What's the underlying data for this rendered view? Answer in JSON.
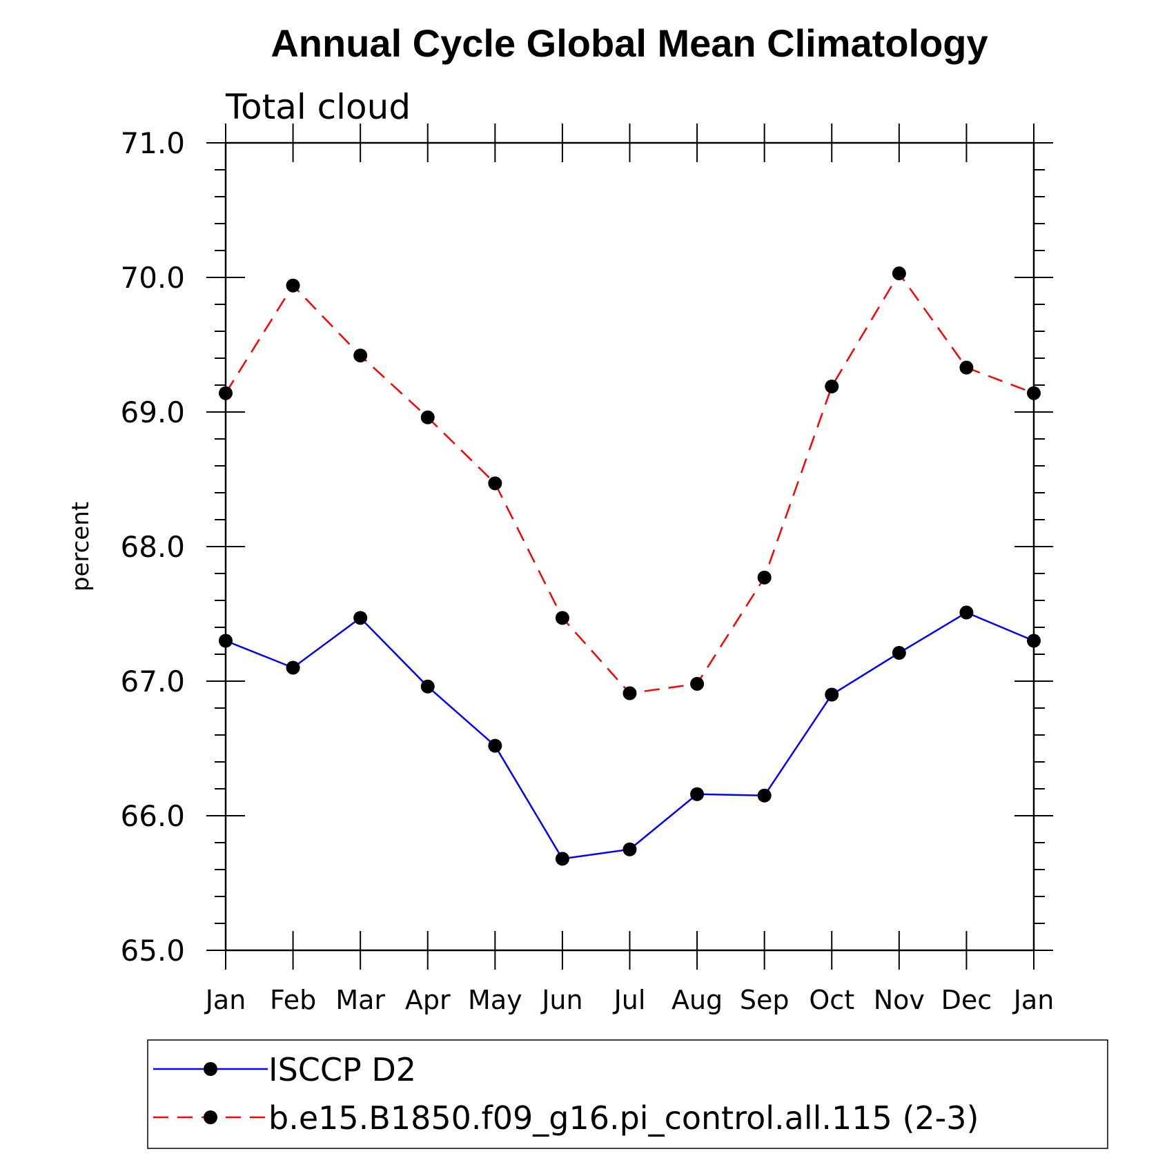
{
  "chart_data": {
    "type": "line",
    "title": "Annual Cycle Global Mean Climatology",
    "subtitle": "Total cloud",
    "xlabel": "",
    "ylabel": "percent",
    "categories": [
      "Jan",
      "Feb",
      "Mar",
      "Apr",
      "May",
      "Jun",
      "Jul",
      "Aug",
      "Sep",
      "Oct",
      "Nov",
      "Dec",
      "Jan"
    ],
    "ylim": [
      65.0,
      71.0
    ],
    "yticks": [
      "65.0",
      "66.0",
      "67.0",
      "68.0",
      "69.0",
      "70.0",
      "71.0"
    ],
    "grid": false,
    "legend_position": "bottom",
    "series": [
      {
        "name": "ISCCP D2",
        "color": "#0000ff",
        "dash": "solid",
        "marker": "filled-circle",
        "values": [
          67.3,
          67.1,
          67.47,
          66.96,
          66.52,
          65.68,
          65.75,
          66.16,
          66.15,
          66.9,
          67.21,
          67.51,
          67.3
        ]
      },
      {
        "name": "b.e15.B1850.f09_g16.pi_control.all.115 (2-3)",
        "color": "#ff0000",
        "dash": "dashed",
        "marker": "filled-circle",
        "values": [
          69.14,
          69.94,
          69.42,
          68.96,
          68.47,
          67.47,
          66.91,
          66.98,
          67.77,
          69.19,
          70.03,
          69.33,
          69.14
        ]
      }
    ]
  }
}
